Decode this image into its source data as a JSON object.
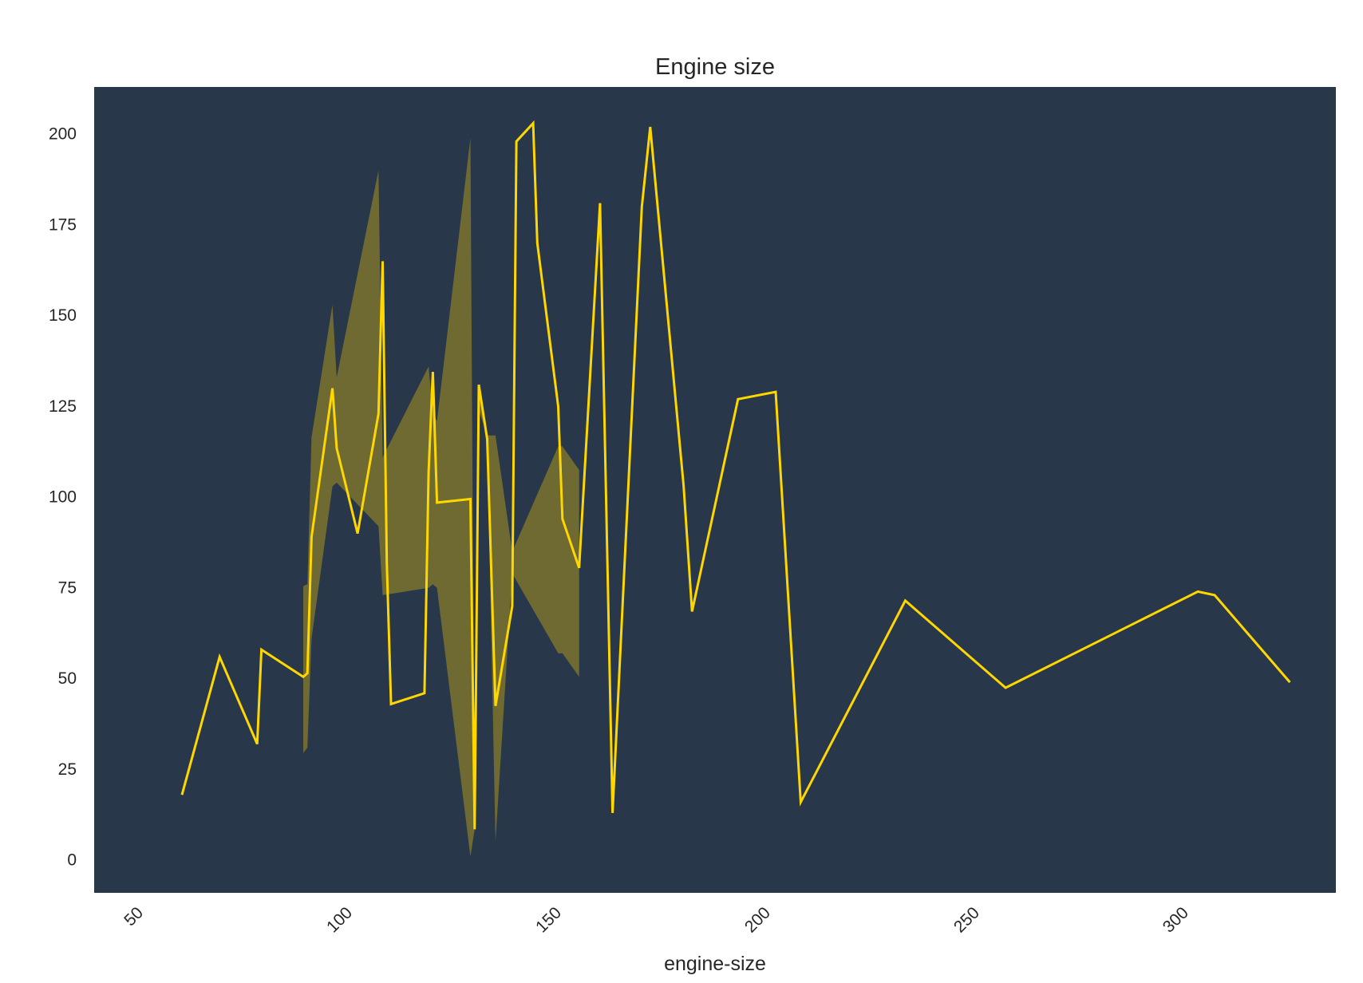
{
  "chart_data": {
    "type": "line",
    "title": "Engine size",
    "xlabel": "engine-size",
    "ylabel": "",
    "xlim": [
      40,
      337
    ],
    "ylim": [
      -9,
      213
    ],
    "xticks": [
      50,
      100,
      150,
      200,
      250,
      300
    ],
    "yticks": [
      0,
      25,
      50,
      75,
      100,
      125,
      150,
      175,
      200
    ],
    "xtick_rotation": 45,
    "grid": false,
    "legend": "none",
    "colors": {
      "plot_background": "#283749",
      "line": "#ffd700",
      "band": "#77702f",
      "text": "#262626"
    },
    "series": [
      {
        "x": [
          61,
          70,
          79,
          80,
          90,
          91,
          92,
          97,
          98,
          103,
          108,
          109,
          110,
          111,
          119,
          120,
          121,
          122,
          130,
          131,
          132,
          134,
          136,
          140,
          141,
          145,
          146,
          151,
          152,
          156,
          161,
          164,
          171,
          173,
          181,
          183,
          194,
          203,
          209,
          234,
          258,
          304,
          308,
          326
        ],
        "y": [
          18,
          56,
          32,
          58,
          50.5,
          51.5,
          89,
          130,
          113.5,
          90,
          123,
          165,
          82,
          43,
          46,
          107,
          134.5,
          98.5,
          99.5,
          8.5,
          131,
          116,
          42.5,
          70,
          198,
          203,
          170,
          125,
          94,
          80.5,
          181,
          13,
          180,
          202,
          103,
          68.5,
          127,
          129,
          16,
          71.5,
          47.5,
          74,
          73,
          49
        ]
      }
    ],
    "ci_band": {
      "x": [
        90,
        91,
        92,
        97,
        98,
        108,
        109,
        120,
        121,
        122,
        130,
        131,
        132,
        134,
        136,
        140,
        151,
        152,
        156
      ],
      "lower": [
        29.5,
        31,
        61,
        103,
        104,
        92,
        73,
        75,
        76,
        75,
        1,
        8.5,
        124,
        117,
        5,
        79,
        57,
        57,
        50.5
      ],
      "upper": [
        75.5,
        76,
        116.5,
        153,
        133,
        190,
        111,
        136,
        123,
        121,
        199,
        8.5,
        128,
        117,
        117,
        85,
        114,
        114,
        107.5
      ]
    }
  }
}
